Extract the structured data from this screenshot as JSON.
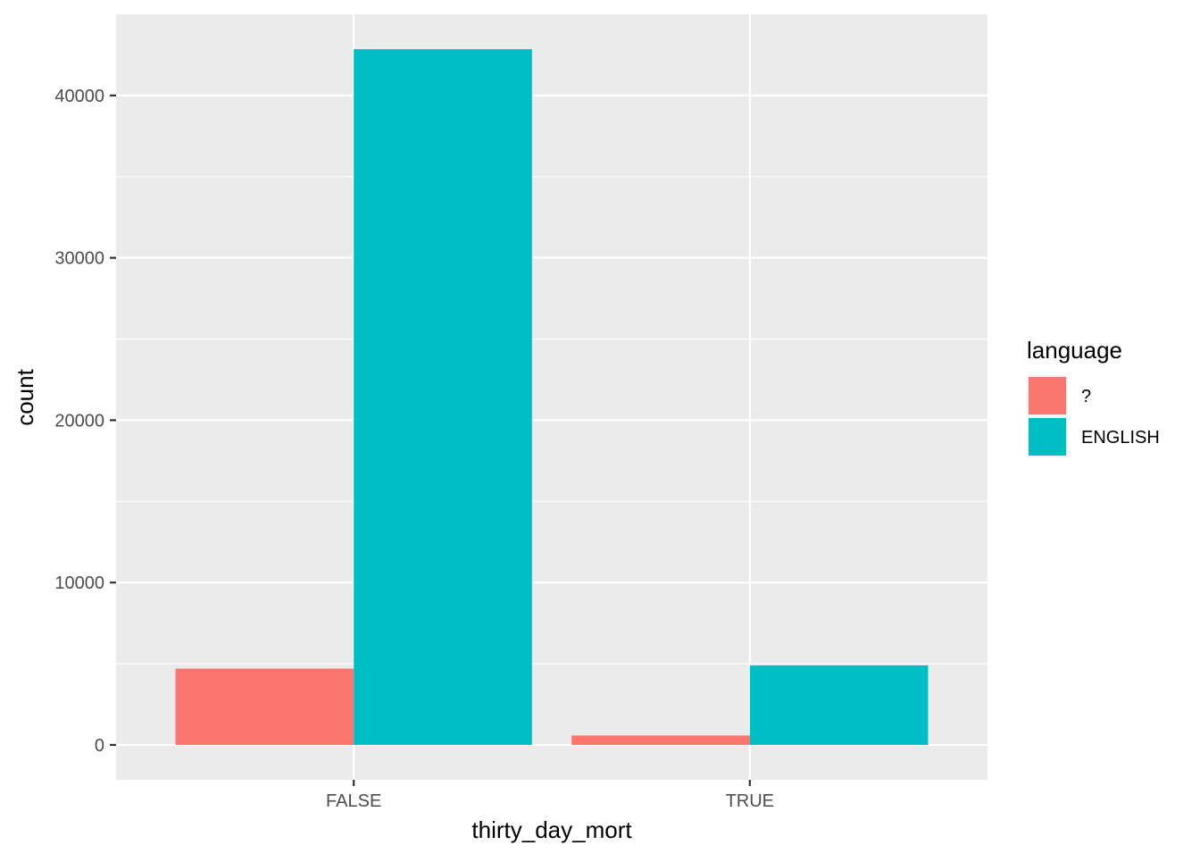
{
  "chart_data": {
    "type": "bar",
    "position": "dodge",
    "categories": [
      "FALSE",
      "TRUE"
    ],
    "series": [
      {
        "name": "?",
        "color": "#F8766D",
        "values": [
          4700,
          580
        ]
      },
      {
        "name": "ENGLISH",
        "color": "#00BFC4",
        "values": [
          42850,
          4900
        ]
      }
    ],
    "xlabel": "thirty_day_mort",
    "ylabel": "count",
    "yticks": [
      0,
      10000,
      20000,
      30000,
      40000
    ],
    "ytick_labels": [
      "0",
      "10000",
      "20000",
      "30000",
      "40000"
    ],
    "ylim": [
      -2150,
      45000
    ],
    "grid": true,
    "legend": {
      "title": "language",
      "position": "right"
    },
    "colors": {
      "panel": "#EBEBEB",
      "gridline": "#FFFFFF",
      "tick_text": "#4D4D4D",
      "tick_mark": "#333333"
    }
  }
}
